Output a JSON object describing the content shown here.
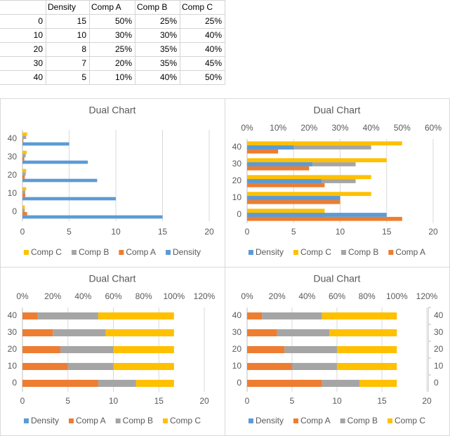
{
  "table": {
    "columns": [
      "Density",
      "Comp A",
      "Comp B",
      "Comp C"
    ],
    "rows": [
      [
        0,
        15,
        "50%",
        "25%",
        "25%"
      ],
      [
        10,
        10,
        "30%",
        "30%",
        "40%"
      ],
      [
        20,
        8,
        "25%",
        "35%",
        "40%"
      ],
      [
        30,
        7,
        "20%",
        "35%",
        "45%"
      ],
      [
        40,
        5,
        "10%",
        "40%",
        "50%"
      ]
    ]
  },
  "chart_data": [
    {
      "type": "bar",
      "title": "Dual Chart",
      "categories": [
        0,
        10,
        20,
        30,
        40
      ],
      "xlim": [
        0,
        20
      ],
      "xticks": [
        0,
        5,
        10,
        15,
        20
      ],
      "grid": true,
      "series": [
        {
          "name": "Comp C",
          "color": "#ffc000",
          "values": [
            0.25,
            0.4,
            0.4,
            0.45,
            0.5
          ]
        },
        {
          "name": "Comp B",
          "color": "#a5a5a5",
          "values": [
            0.25,
            0.3,
            0.35,
            0.35,
            0.4
          ]
        },
        {
          "name": "Comp A",
          "color": "#ed7d31",
          "values": [
            0.5,
            0.3,
            0.25,
            0.2,
            0.1
          ]
        },
        {
          "name": "Density",
          "color": "#5b9bd5",
          "values": [
            15,
            10,
            8,
            7,
            5
          ]
        }
      ]
    },
    {
      "type": "bar",
      "title": "Dual Chart",
      "categories": [
        0,
        10,
        20,
        30,
        40
      ],
      "xlim": [
        0,
        20
      ],
      "xticks": [
        0,
        5,
        10,
        15,
        20
      ],
      "grid": true,
      "x2lim": [
        0,
        60
      ],
      "x2ticks": [
        {
          "value": 0,
          "label": "0%"
        },
        {
          "value": 10,
          "label": "10%"
        },
        {
          "value": 20,
          "label": "20%"
        },
        {
          "value": 30,
          "label": "30%"
        },
        {
          "value": 40,
          "label": "40%"
        },
        {
          "value": 50,
          "label": "50%"
        },
        {
          "value": 60,
          "label": "60%"
        }
      ],
      "series": [
        {
          "name": "Density",
          "color": "#5b9bd5",
          "values": [
            15,
            10,
            8,
            7,
            5
          ]
        },
        {
          "name": "Comp C",
          "color": "#ffc000",
          "axis": "x2",
          "values": [
            25,
            40,
            40,
            45,
            50
          ]
        },
        {
          "name": "Comp B",
          "color": "#a5a5a5",
          "axis": "x2",
          "values": [
            25,
            30,
            35,
            35,
            40
          ]
        },
        {
          "name": "Comp A",
          "color": "#ed7d31",
          "axis": "x2",
          "values": [
            50,
            30,
            25,
            20,
            10
          ]
        }
      ]
    },
    {
      "type": "stacked-bar",
      "title": "Dual Chart",
      "categories": [
        0,
        10,
        20,
        30,
        40
      ],
      "xlim": [
        0,
        20
      ],
      "xticks": [
        0,
        5,
        10,
        15,
        20
      ],
      "grid": true,
      "x2lim": [
        0,
        120
      ],
      "x2ticks": [
        {
          "value": 0,
          "label": "0%"
        },
        {
          "value": 20,
          "label": "20%"
        },
        {
          "value": 40,
          "label": "40%"
        },
        {
          "value": 60,
          "label": "60%"
        },
        {
          "value": 80,
          "label": "80%"
        },
        {
          "value": 100,
          "label": "100%"
        },
        {
          "value": 120,
          "label": "120%"
        }
      ],
      "series": [
        {
          "name": "Density",
          "color": "#5b9bd5"
        },
        {
          "name": "Comp A",
          "color": "#ed7d31",
          "axis": "x2",
          "values": [
            50,
            30,
            25,
            20,
            10
          ]
        },
        {
          "name": "Comp B",
          "color": "#a5a5a5",
          "axis": "x2",
          "values": [
            25,
            30,
            35,
            35,
            40
          ]
        },
        {
          "name": "Comp C",
          "color": "#ffc000",
          "axis": "x2",
          "values": [
            25,
            40,
            40,
            45,
            50
          ]
        }
      ]
    },
    {
      "type": "stacked-bar",
      "title": "Dual Chart",
      "categories": [
        0,
        10,
        20,
        30,
        40
      ],
      "y2categories": [
        0,
        10,
        20,
        30,
        40
      ],
      "xlim": [
        0,
        20
      ],
      "xticks": [
        0,
        5,
        10,
        15,
        20
      ],
      "grid": true,
      "x2lim": [
        0,
        120
      ],
      "x2ticks": [
        {
          "value": 0,
          "label": "0%"
        },
        {
          "value": 20,
          "label": "20%"
        },
        {
          "value": 40,
          "label": "40%"
        },
        {
          "value": 60,
          "label": "60%"
        },
        {
          "value": 80,
          "label": "80%"
        },
        {
          "value": 100,
          "label": "100%"
        },
        {
          "value": 120,
          "label": "120%"
        }
      ],
      "series": [
        {
          "name": "Density",
          "color": "#5b9bd5"
        },
        {
          "name": "Comp A",
          "color": "#ed7d31",
          "axis": "x2",
          "values": [
            50,
            30,
            25,
            20,
            10
          ]
        },
        {
          "name": "Comp B",
          "color": "#a5a5a5",
          "axis": "x2",
          "values": [
            25,
            30,
            35,
            35,
            40
          ]
        },
        {
          "name": "Comp C",
          "color": "#ffc000",
          "axis": "x2",
          "values": [
            25,
            40,
            40,
            45,
            50
          ]
        }
      ]
    }
  ]
}
